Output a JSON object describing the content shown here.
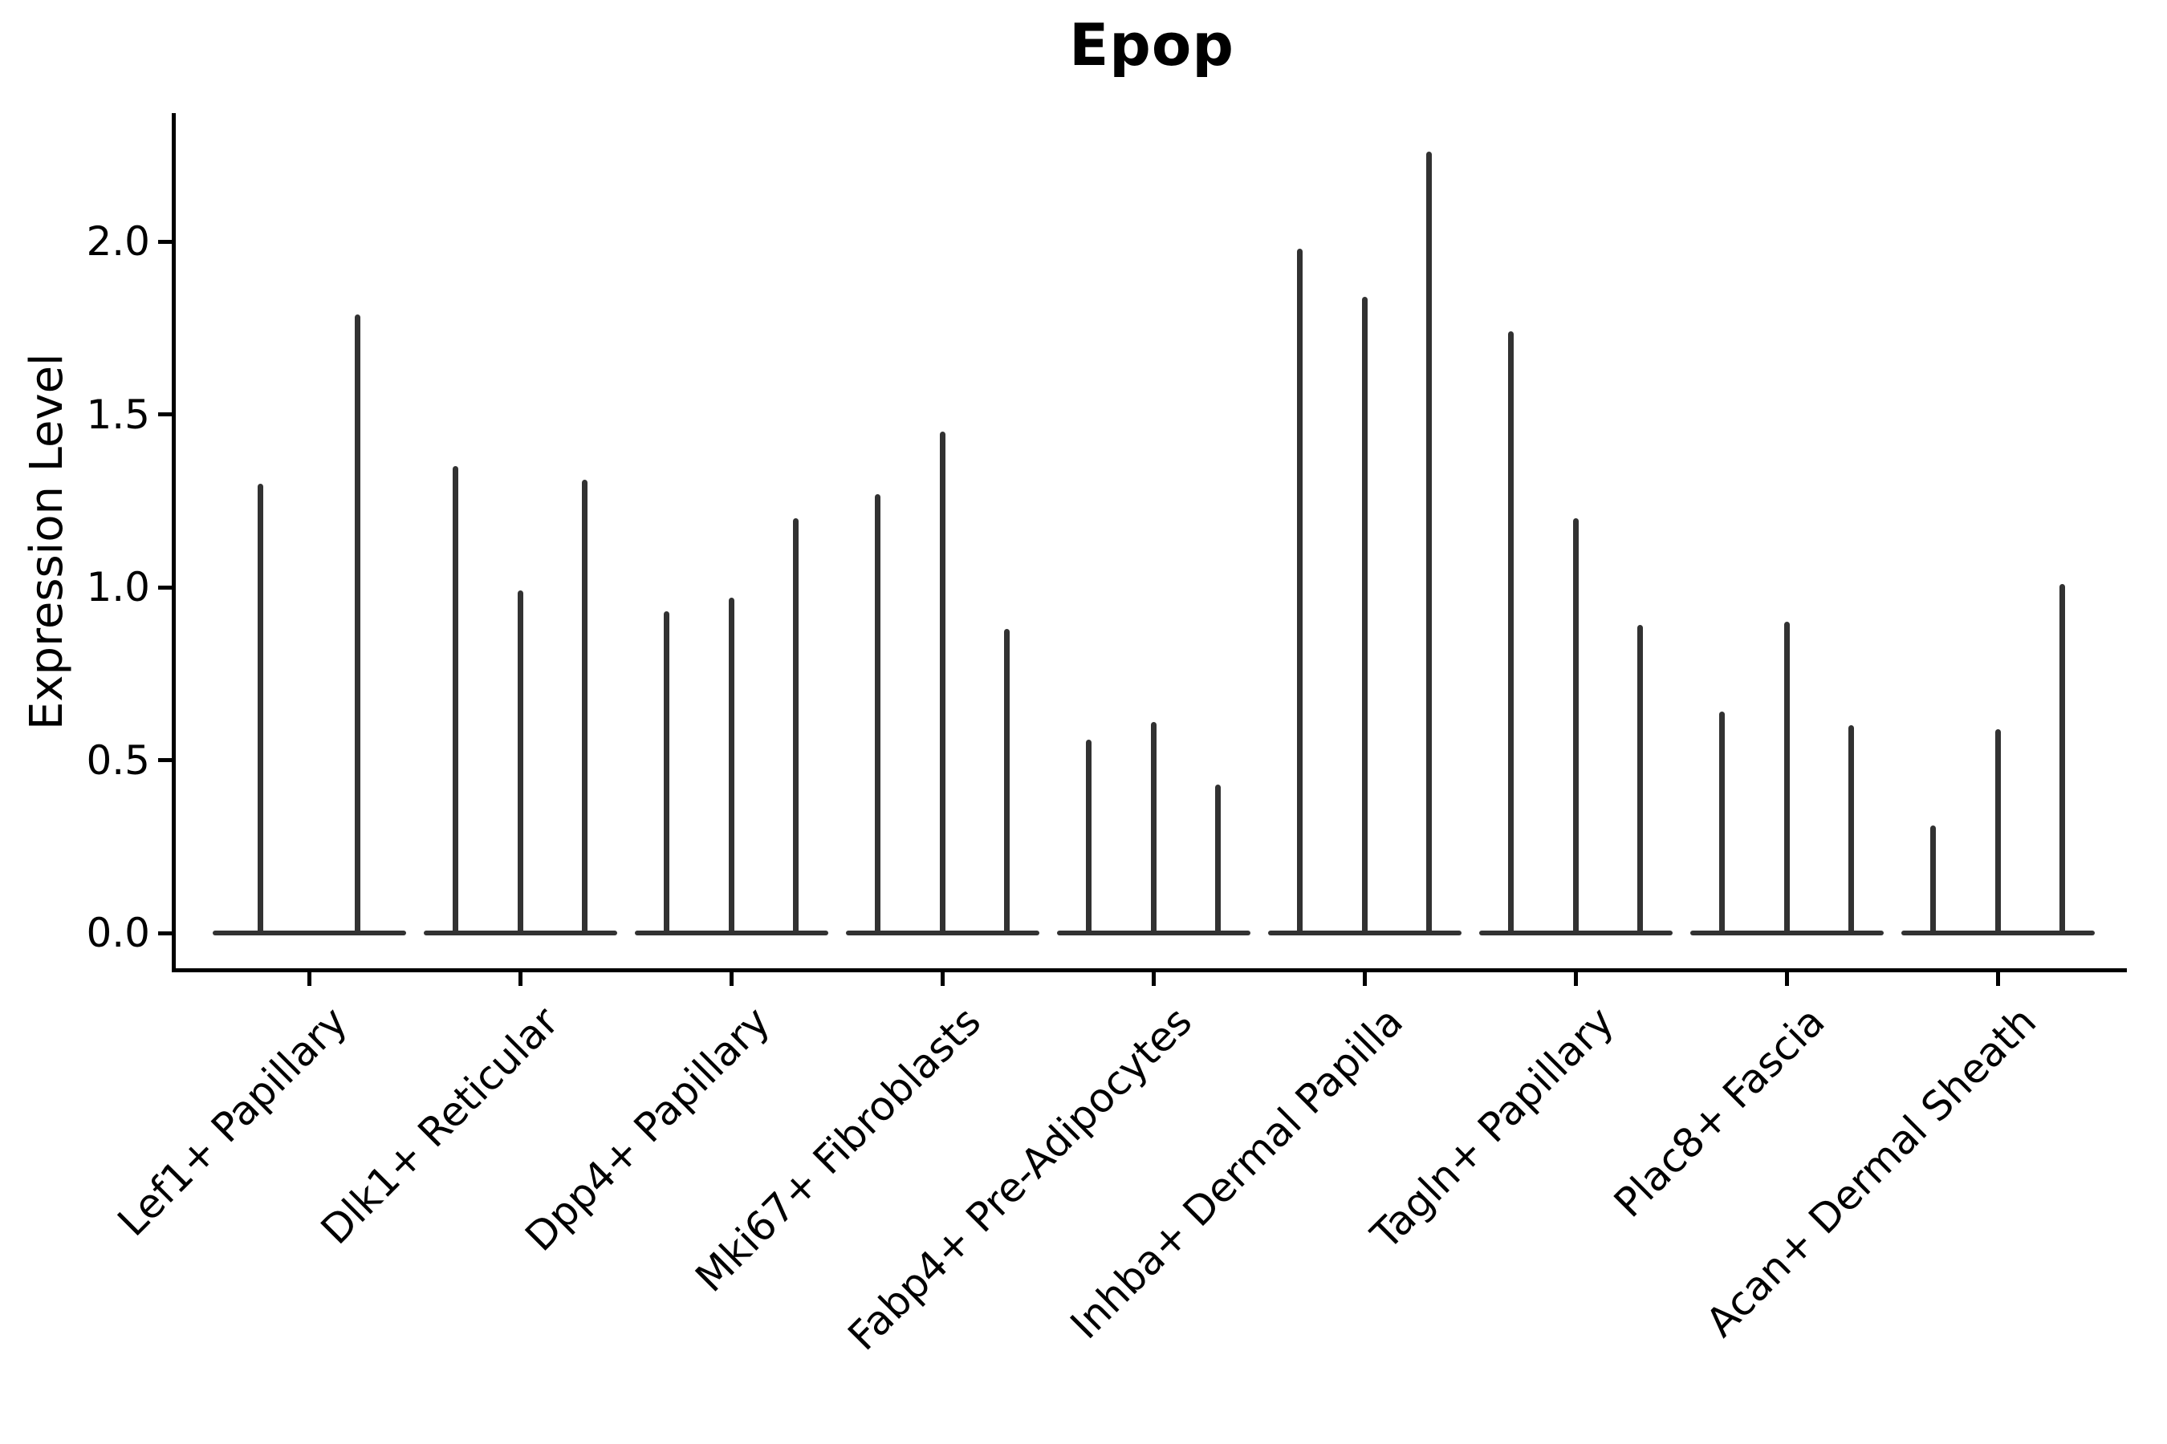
{
  "chart_data": {
    "type": "violin",
    "title": "Epop",
    "ylabel": "Expression Level",
    "xlabel": "",
    "grid": false,
    "legend": "none",
    "ylim": [
      -0.11,
      2.37
    ],
    "ytick_labels": [
      "0.0",
      "0.5",
      "1.0",
      "1.5",
      "2.0"
    ],
    "ytick_values": [
      0.0,
      0.5,
      1.0,
      1.5,
      2.0
    ],
    "categories": [
      "Lef1+ Papillary",
      "Dlk1+ Reticular",
      "Dpp4+ Papillary",
      "Mki67+ Fibroblasts",
      "Fabp4+ Pre-Adipocytes",
      "Inhba+ Dermal Papilla",
      "Tagln+ Papillary",
      "Plac8+ Fascia",
      "Acan+ Dermal Sheath"
    ],
    "series": [
      {
        "category": "Lef1+ Papillary",
        "violin_max_values": [
          1.3,
          1.79
        ]
      },
      {
        "category": "Dlk1+ Reticular",
        "violin_max_values": [
          1.35,
          0.99,
          1.31
        ]
      },
      {
        "category": "Dpp4+ Papillary",
        "violin_max_values": [
          0.93,
          0.97,
          1.2
        ]
      },
      {
        "category": "Mki67+ Fibroblasts",
        "violin_max_values": [
          1.27,
          1.45,
          0.88
        ]
      },
      {
        "category": "Fabp4+ Pre-Adipocytes",
        "violin_max_values": [
          0.56,
          0.61,
          0.43
        ]
      },
      {
        "category": "Inhba+ Dermal Papilla",
        "violin_max_values": [
          1.98,
          1.84,
          2.26
        ]
      },
      {
        "category": "Tagln+ Papillary",
        "violin_max_values": [
          1.74,
          1.2,
          0.89
        ]
      },
      {
        "category": "Plac8+ Fascia",
        "violin_max_values": [
          0.64,
          0.9,
          0.6
        ]
      },
      {
        "category": "Acan+ Dermal Sheath",
        "violin_max_values": [
          0.31,
          0.59,
          1.01
        ]
      }
    ],
    "violin_shape_note": "distributions collapsed flat at 0 with a thin vertical tail up to each max",
    "colors": {
      "violin": "#323232",
      "axis": "#000000",
      "text": "#000000",
      "background": "#ffffff"
    }
  }
}
